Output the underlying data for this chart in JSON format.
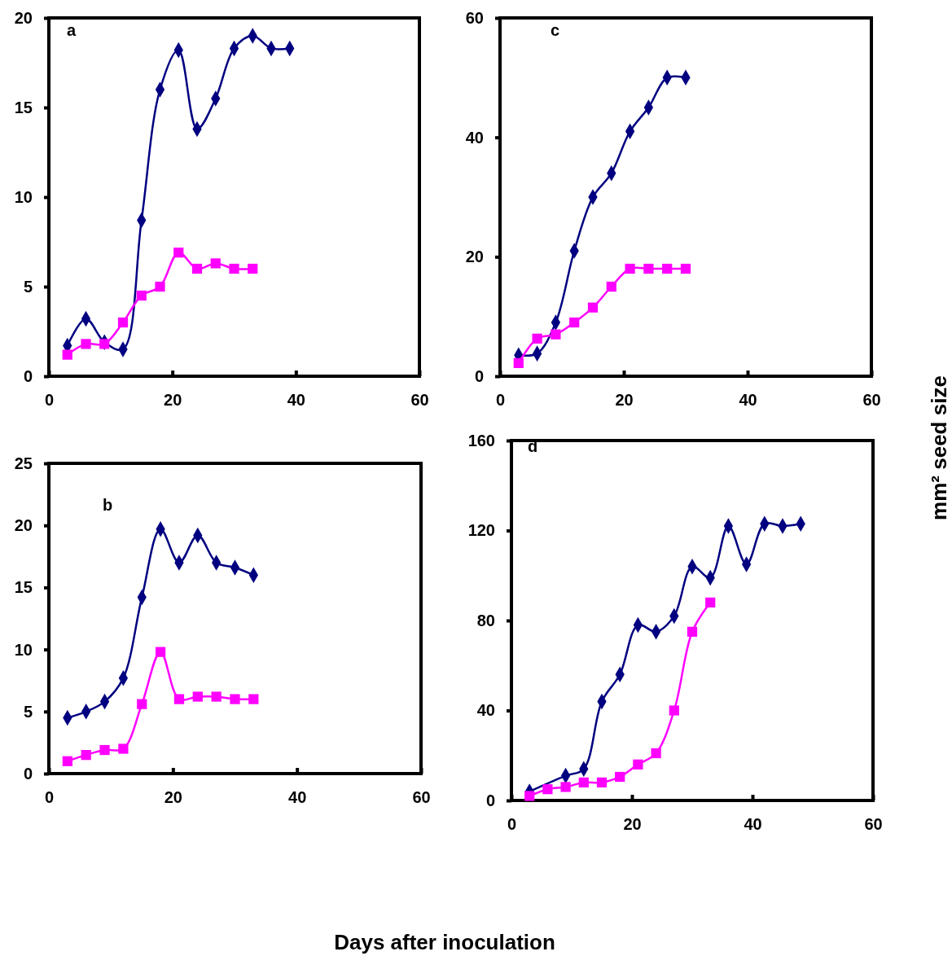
{
  "chart_data": [
    {
      "type": "line",
      "annotations": [
        "a"
      ],
      "x": [
        3,
        6,
        9,
        12,
        15,
        18,
        21,
        24,
        27,
        30,
        33,
        36,
        39
      ],
      "xlim": [
        0,
        60
      ],
      "xticks": [
        0,
        20,
        40,
        60
      ],
      "ylim": [
        0,
        20
      ],
      "yticks": [
        0,
        5,
        10,
        15,
        20
      ],
      "grid": false,
      "series": [
        {
          "color": "#000080",
          "marker": "diamond",
          "values": [
            1.7,
            3.2,
            1.9,
            1.5,
            8.7,
            16,
            18.2,
            13.8,
            15.5,
            18.3,
            19,
            18.3,
            18.3
          ]
        },
        {
          "color": "#ff00ff",
          "marker": "square",
          "values": [
            1.2,
            1.8,
            1.8,
            3,
            4.5,
            5,
            6.9,
            6,
            6.3,
            6,
            6,
            null,
            null
          ]
        }
      ]
    },
    {
      "type": "line",
      "annotations": [
        "c"
      ],
      "ylabel": "mm² seed size",
      "x": [
        3,
        6,
        9,
        12,
        15,
        18,
        21,
        24,
        27,
        30
      ],
      "xlim": [
        0,
        60
      ],
      "xticks": [
        0,
        20,
        40,
        60
      ],
      "ylim": [
        0,
        60
      ],
      "yticks": [
        0,
        20,
        40,
        60
      ],
      "grid": false,
      "series": [
        {
          "color": "#000080",
          "marker": "diamond",
          "values": [
            3.5,
            3.8,
            9,
            21,
            30,
            34,
            41,
            45,
            50,
            50
          ]
        },
        {
          "color": "#ff00ff",
          "marker": "square",
          "values": [
            2.2,
            6.3,
            7,
            9,
            11.5,
            15,
            18,
            18,
            18,
            18
          ]
        }
      ]
    },
    {
      "type": "line",
      "annotations": [
        "b"
      ],
      "x": [
        3,
        6,
        9,
        12,
        15,
        18,
        21,
        24,
        27,
        30,
        33
      ],
      "xlim": [
        0,
        60
      ],
      "xticks": [
        0,
        20,
        40,
        60
      ],
      "ylim": [
        0,
        25
      ],
      "yticks": [
        0,
        5,
        10,
        15,
        20,
        25
      ],
      "grid": false,
      "series": [
        {
          "color": "#000080",
          "marker": "diamond",
          "values": [
            4.5,
            5,
            5.8,
            7.7,
            14.2,
            19.7,
            17,
            19.2,
            17,
            16.6,
            16
          ]
        },
        {
          "color": "#ff00ff",
          "marker": "square",
          "values": [
            1,
            1.5,
            1.9,
            2,
            5.6,
            9.8,
            6,
            6.2,
            6.2,
            6,
            6
          ]
        }
      ]
    },
    {
      "type": "line",
      "annotations": [
        "d"
      ],
      "xlabel": "Days after inoculation",
      "x": [
        3,
        6,
        9,
        12,
        15,
        18,
        21,
        24,
        27,
        30,
        33,
        36,
        39,
        42,
        45,
        48
      ],
      "xlim": [
        0,
        60
      ],
      "xticks": [
        0,
        20,
        40,
        60
      ],
      "ylim": [
        0,
        160
      ],
      "yticks": [
        0,
        40,
        80,
        120,
        160
      ],
      "grid": false,
      "series": [
        {
          "color": "#000080",
          "marker": "diamond",
          "values": [
            4,
            null,
            11,
            14,
            44,
            56,
            78,
            75,
            82,
            104,
            99,
            122,
            105,
            123,
            122,
            123
          ]
        },
        {
          "color": "#ff00ff",
          "marker": "square",
          "values": [
            2,
            5,
            6,
            8,
            8,
            10.5,
            16,
            21,
            40,
            75,
            88,
            null,
            null,
            null,
            null,
            null
          ]
        }
      ]
    }
  ]
}
